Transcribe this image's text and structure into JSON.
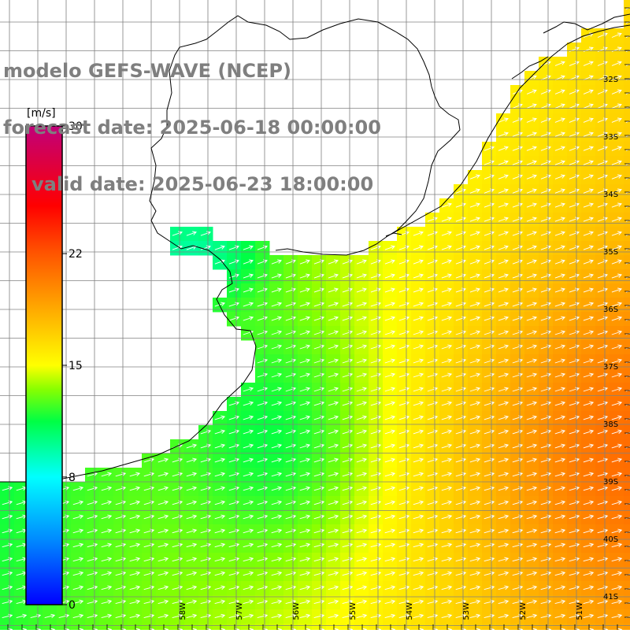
{
  "header": {
    "line1": "modelo GEFS-WAVE (NCEP)",
    "line2": "forecast date: 2025-06-18 00:00:00",
    "line3": "valid date: 2025-06-23 18:00:00"
  },
  "colorbar": {
    "unit": "[m/s]",
    "ticks": [
      "30",
      "22",
      "15",
      "8",
      "0"
    ],
    "tick_values": [
      30,
      22,
      15,
      8,
      0
    ],
    "min": 0,
    "max": 30,
    "color_stops": [
      {
        "value": 0,
        "color": "#0000ff"
      },
      {
        "value": 4,
        "color": "#0088ff"
      },
      {
        "value": 8,
        "color": "#00ffff"
      },
      {
        "value": 11.5,
        "color": "#00ff44"
      },
      {
        "value": 13.5,
        "color": "#88ff00"
      },
      {
        "value": 15,
        "color": "#ffff00"
      },
      {
        "value": 18.5,
        "color": "#ffaa00"
      },
      {
        "value": 22,
        "color": "#ff5500"
      },
      {
        "value": 25,
        "color": "#ff0000"
      },
      {
        "value": 30,
        "color": "#c0007a"
      }
    ]
  },
  "map": {
    "lon_labels": [
      "58W",
      "57W",
      "56W",
      "55W",
      "54W",
      "53W",
      "52W",
      "51W"
    ],
    "lon_values": [
      -58,
      -57,
      -56,
      -55,
      -54,
      -53,
      -52,
      -51
    ],
    "lat_labels": [
      "32S",
      "33S",
      "34S",
      "35S",
      "36S",
      "37S",
      "38S",
      "39S",
      "40S",
      "41S"
    ],
    "lat_values": [
      -32,
      -33,
      -34,
      -35,
      -36,
      -37,
      -38,
      -39,
      -40,
      -41
    ],
    "grid_color": "#808080",
    "land_color": "#ffffff",
    "coast_color": "#000000",
    "arrow_color": "#ffffff",
    "wind_direction": "from west-southwest toward east-northeast"
  }
}
